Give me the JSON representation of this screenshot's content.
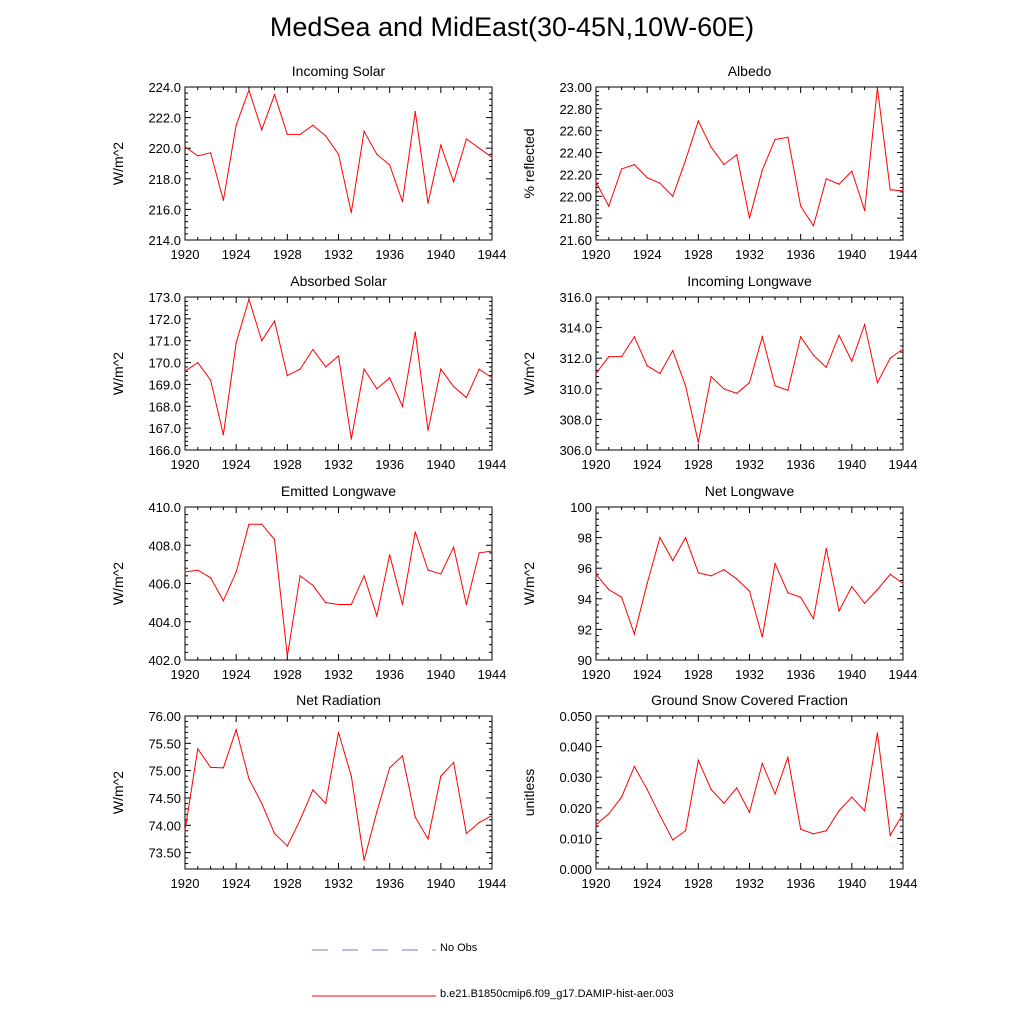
{
  "title": "MedSea and MidEast(30-45N,10W-60E)",
  "colors": {
    "model_line": "#ff0000",
    "obs_line": "#7a7ad8",
    "axis": "#000000"
  },
  "legend": [
    {
      "label": "No Obs",
      "style": "dashed",
      "color": "#7a7ad8"
    },
    {
      "label": "b.e21.B1850cmip6.f09_g17.DAMIP-hist-aer.003",
      "style": "solid",
      "color": "#ff0000"
    }
  ],
  "chart_data": [
    {
      "type": "line",
      "title": "Incoming Solar",
      "xlabel": "",
      "ylabel": "W/m^2",
      "xlim": [
        1920,
        1944
      ],
      "ylim": [
        214,
        224
      ],
      "grid": false,
      "xticks": [
        1920,
        1924,
        1928,
        1932,
        1936,
        1940,
        1944
      ],
      "yticks": [
        214,
        216,
        218,
        220,
        222,
        224
      ],
      "ytick_decimals": 1,
      "x": [
        1920,
        1921,
        1922,
        1923,
        1924,
        1925,
        1926,
        1927,
        1928,
        1929,
        1930,
        1931,
        1932,
        1933,
        1934,
        1935,
        1936,
        1937,
        1938,
        1939,
        1940,
        1941,
        1942,
        1943,
        1944
      ],
      "series": [
        {
          "values": [
            220.1,
            219.5,
            219.7,
            216.6,
            221.5,
            223.8,
            221.2,
            223.5,
            220.9,
            220.9,
            221.5,
            220.8,
            219.6,
            215.8,
            221.1,
            219.6,
            218.9,
            216.5,
            222.4,
            216.4,
            220.2,
            217.8,
            220.6,
            220.0,
            219.4
          ]
        }
      ]
    },
    {
      "type": "line",
      "title": "Albedo",
      "xlabel": "",
      "ylabel": "% reflected",
      "xlim": [
        1920,
        1944
      ],
      "ylim": [
        21.6,
        23.0
      ],
      "grid": false,
      "xticks": [
        1920,
        1924,
        1928,
        1932,
        1936,
        1940,
        1944
      ],
      "yticks": [
        21.6,
        21.8,
        22.0,
        22.2,
        22.4,
        22.6,
        22.8,
        23.0
      ],
      "ytick_decimals": 2,
      "x": [
        1920,
        1921,
        1922,
        1923,
        1924,
        1925,
        1926,
        1927,
        1928,
        1929,
        1930,
        1931,
        1932,
        1933,
        1934,
        1935,
        1936,
        1937,
        1938,
        1939,
        1940,
        1941,
        1942,
        1943,
        1944
      ],
      "series": [
        {
          "values": [
            22.13,
            21.91,
            22.25,
            22.29,
            22.17,
            22.12,
            22.0,
            22.33,
            22.69,
            22.45,
            22.29,
            22.38,
            21.8,
            22.24,
            22.52,
            22.54,
            21.91,
            21.73,
            22.16,
            22.11,
            22.23,
            21.87,
            22.99,
            22.06,
            22.05
          ]
        }
      ]
    },
    {
      "type": "line",
      "title": "Absorbed Solar",
      "xlabel": "",
      "ylabel": "W/m^2",
      "xlim": [
        1920,
        1944
      ],
      "ylim": [
        166,
        173
      ],
      "grid": false,
      "xticks": [
        1920,
        1924,
        1928,
        1932,
        1936,
        1940,
        1944
      ],
      "yticks": [
        166,
        167,
        168,
        169,
        170,
        171,
        172,
        173
      ],
      "ytick_decimals": 1,
      "x": [
        1920,
        1921,
        1922,
        1923,
        1924,
        1925,
        1926,
        1927,
        1928,
        1929,
        1930,
        1931,
        1932,
        1933,
        1934,
        1935,
        1936,
        1937,
        1938,
        1939,
        1940,
        1941,
        1942,
        1943,
        1944
      ],
      "series": [
        {
          "values": [
            169.6,
            170.0,
            169.2,
            166.7,
            170.9,
            172.9,
            171.0,
            171.9,
            169.4,
            169.7,
            170.6,
            169.8,
            170.3,
            166.5,
            169.7,
            168.8,
            169.3,
            168.0,
            171.4,
            166.9,
            169.7,
            168.9,
            168.4,
            169.7,
            169.3
          ]
        }
      ]
    },
    {
      "type": "line",
      "title": "Incoming Longwave",
      "xlabel": "",
      "ylabel": "W/m^2",
      "xlim": [
        1920,
        1944
      ],
      "ylim": [
        306,
        316
      ],
      "grid": false,
      "xticks": [
        1920,
        1924,
        1928,
        1932,
        1936,
        1940,
        1944
      ],
      "yticks": [
        306,
        308,
        310,
        312,
        314,
        316
      ],
      "ytick_decimals": 1,
      "x": [
        1920,
        1921,
        1922,
        1923,
        1924,
        1925,
        1926,
        1927,
        1928,
        1929,
        1930,
        1931,
        1932,
        1933,
        1934,
        1935,
        1936,
        1937,
        1938,
        1939,
        1940,
        1941,
        1942,
        1943,
        1944
      ],
      "series": [
        {
          "values": [
            311.0,
            312.1,
            312.1,
            313.4,
            311.5,
            311.0,
            312.5,
            310.2,
            306.5,
            310.8,
            310.0,
            309.7,
            310.4,
            313.4,
            310.2,
            309.9,
            313.4,
            312.2,
            311.4,
            313.5,
            311.8,
            314.2,
            310.4,
            312.0,
            312.6
          ]
        }
      ]
    },
    {
      "type": "line",
      "title": "Emitted Longwave",
      "xlabel": "",
      "ylabel": "W/m^2",
      "xlim": [
        1920,
        1944
      ],
      "ylim": [
        402,
        410
      ],
      "grid": false,
      "xticks": [
        1920,
        1924,
        1928,
        1932,
        1936,
        1940,
        1944
      ],
      "yticks": [
        402,
        404,
        406,
        408,
        410
      ],
      "ytick_decimals": 1,
      "x": [
        1920,
        1921,
        1922,
        1923,
        1924,
        1925,
        1926,
        1927,
        1928,
        1929,
        1930,
        1931,
        1932,
        1933,
        1934,
        1935,
        1936,
        1937,
        1938,
        1939,
        1940,
        1941,
        1942,
        1943,
        1944
      ],
      "series": [
        {
          "values": [
            406.6,
            406.7,
            406.3,
            405.1,
            406.6,
            409.1,
            409.1,
            408.3,
            402.2,
            406.4,
            405.9,
            405.0,
            404.9,
            404.9,
            406.4,
            404.3,
            407.5,
            404.9,
            408.7,
            406.7,
            406.5,
            407.9,
            404.9,
            407.6,
            407.7
          ]
        }
      ]
    },
    {
      "type": "line",
      "title": "Net Longwave",
      "xlabel": "",
      "ylabel": "W/m^2",
      "xlim": [
        1920,
        1944
      ],
      "ylim": [
        90,
        100
      ],
      "grid": false,
      "xticks": [
        1920,
        1924,
        1928,
        1932,
        1936,
        1940,
        1944
      ],
      "yticks": [
        90,
        92,
        94,
        96,
        98,
        100
      ],
      "ytick_decimals": 0,
      "x": [
        1920,
        1921,
        1922,
        1923,
        1924,
        1925,
        1926,
        1927,
        1928,
        1929,
        1930,
        1931,
        1932,
        1933,
        1934,
        1935,
        1936,
        1937,
        1938,
        1939,
        1940,
        1941,
        1942,
        1943,
        1944
      ],
      "series": [
        {
          "values": [
            95.6,
            94.6,
            94.1,
            91.7,
            95.0,
            98.0,
            96.5,
            98.0,
            95.7,
            95.5,
            95.9,
            95.3,
            94.5,
            91.5,
            96.3,
            94.4,
            94.1,
            92.7,
            97.3,
            93.2,
            94.8,
            93.7,
            94.6,
            95.6,
            95.0
          ]
        }
      ]
    },
    {
      "type": "line",
      "title": "Net Radiation",
      "xlabel": "",
      "ylabel": "W/m^2",
      "xlim": [
        1920,
        1944
      ],
      "ylim": [
        73.2,
        76.0
      ],
      "grid": false,
      "xticks": [
        1920,
        1924,
        1928,
        1932,
        1936,
        1940,
        1944
      ],
      "yticks": [
        73.5,
        74.0,
        74.5,
        75.0,
        75.5,
        76.0
      ],
      "ytick_decimals": 2,
      "x": [
        1920,
        1921,
        1922,
        1923,
        1924,
        1925,
        1926,
        1927,
        1928,
        1929,
        1930,
        1931,
        1932,
        1933,
        1934,
        1935,
        1936,
        1937,
        1938,
        1939,
        1940,
        1941,
        1942,
        1943,
        1944
      ],
      "series": [
        {
          "values": [
            73.9,
            75.4,
            75.06,
            75.05,
            75.75,
            74.85,
            74.4,
            73.85,
            73.62,
            74.1,
            74.65,
            74.4,
            75.7,
            74.9,
            73.36,
            74.25,
            75.05,
            75.27,
            74.15,
            73.75,
            74.9,
            75.15,
            73.85,
            74.05,
            74.18
          ]
        }
      ]
    },
    {
      "type": "line",
      "title": "Ground Snow Covered Fraction",
      "xlabel": "",
      "ylabel": "unitless",
      "xlim": [
        1920,
        1944
      ],
      "ylim": [
        0,
        0.05
      ],
      "grid": false,
      "xticks": [
        1920,
        1924,
        1928,
        1932,
        1936,
        1940,
        1944
      ],
      "yticks": [
        0,
        0.01,
        0.02,
        0.03,
        0.04,
        0.05
      ],
      "ytick_decimals": 3,
      "x": [
        1920,
        1921,
        1922,
        1923,
        1924,
        1925,
        1926,
        1927,
        1928,
        1929,
        1930,
        1931,
        1932,
        1933,
        1934,
        1935,
        1936,
        1937,
        1938,
        1939,
        1940,
        1941,
        1942,
        1943,
        1944
      ],
      "series": [
        {
          "values": [
            0.0145,
            0.018,
            0.0235,
            0.0335,
            0.026,
            0.0175,
            0.0095,
            0.0125,
            0.0355,
            0.026,
            0.0215,
            0.0265,
            0.0185,
            0.0345,
            0.0245,
            0.0365,
            0.013,
            0.0115,
            0.0125,
            0.019,
            0.0235,
            0.019,
            0.0445,
            0.011,
            0.018
          ]
        }
      ]
    }
  ]
}
